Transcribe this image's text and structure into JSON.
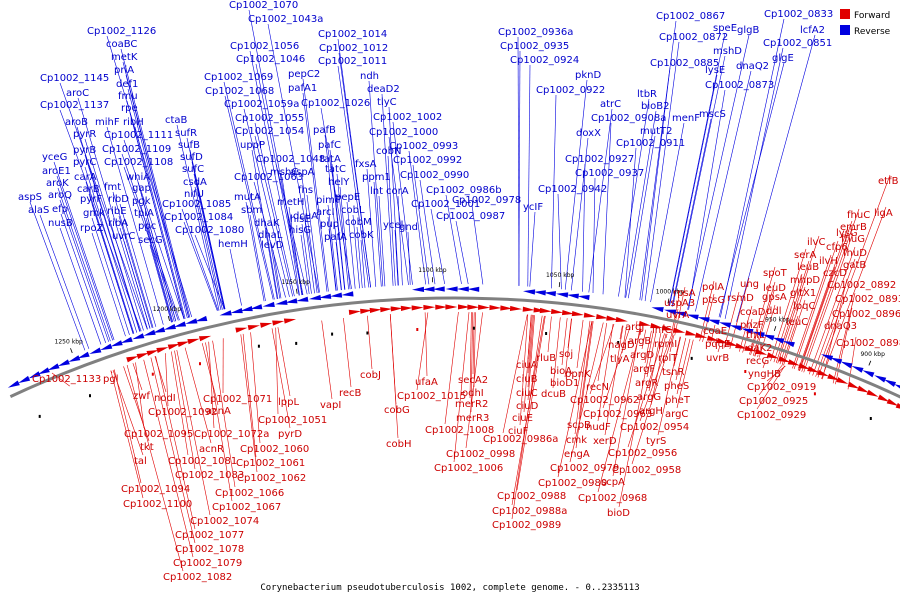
{
  "caption": "Corynebacterium pseudotuberculosis 1002, complete genome. - 0..2335113",
  "legend": {
    "forward": "Forward",
    "reverse": "Reverse"
  },
  "colors": {
    "forward": "#e00000",
    "reverse": "#0000e0",
    "backbone": "#808080"
  },
  "ticks": [
    "1250 kbp",
    "1200 kbp",
    "1150 kbp",
    "1100 kbp",
    "1050 kbp",
    "1000 kbp",
    "950 kbp",
    "900 kbp"
  ],
  "reverse_labels": [
    [
      "Cp1002_1070",
      229,
      8
    ],
    [
      "Cp1002_1043a",
      248,
      22
    ],
    [
      "Cp1002_1126",
      87,
      34
    ],
    [
      "Cp1002_1014",
      318,
      37
    ],
    [
      "coaBC",
      106,
      47
    ],
    [
      "Cp1002_1056",
      230,
      49
    ],
    [
      "Cp1002_1012",
      319,
      51
    ],
    [
      "metK",
      111,
      60
    ],
    [
      "Cp1002_1046",
      236,
      62
    ],
    [
      "Cp1002_1011",
      318,
      64
    ],
    [
      "priA",
      114,
      73
    ],
    [
      "pepC2",
      288,
      77
    ],
    [
      "ndh",
      360,
      79
    ],
    [
      "Cp1002_1145",
      40,
      81
    ],
    [
      "Cp1002_1069",
      204,
      80
    ],
    [
      "def1",
      116,
      87
    ],
    [
      "pafA1",
      288,
      91
    ],
    [
      "Cp1002_1068",
      205,
      94
    ],
    [
      "deaD2",
      367,
      92
    ],
    [
      "aroC",
      66,
      96
    ],
    [
      "fmu",
      118,
      99
    ],
    [
      "Cp1002_1059a",
      224,
      107
    ],
    [
      "Cp1002_1026",
      301,
      106
    ],
    [
      "tlyC",
      377,
      105
    ],
    [
      "Cp1002_1137",
      40,
      108
    ],
    [
      "rpe",
      121,
      111
    ],
    [
      "Cp1002_1055",
      235,
      121
    ],
    [
      "Cp1002_1002",
      373,
      120
    ],
    [
      "aroB",
      65,
      125
    ],
    [
      "mihF",
      95,
      125
    ],
    [
      "ribH",
      123,
      125
    ],
    [
      "ctaB",
      165,
      123
    ],
    [
      "pafB",
      313,
      133
    ],
    [
      "Cp1002_1054",
      235,
      134
    ],
    [
      "Cp1002_1000",
      369,
      135
    ],
    [
      "pyrR",
      73,
      137
    ],
    [
      "Cp1002_1111",
      104,
      138
    ],
    [
      "sufR",
      175,
      136
    ],
    [
      "uppP",
      240,
      148
    ],
    [
      "pafC",
      318,
      148
    ],
    [
      "sufB",
      178,
      148
    ],
    [
      "Cp1002_0993",
      389,
      149
    ],
    [
      "yceG",
      42,
      160
    ],
    [
      "pyrB",
      73,
      153
    ],
    [
      "Cp1002_1109",
      102,
      152
    ],
    [
      "cobN",
      376,
      154
    ],
    [
      "sufD",
      180,
      160
    ],
    [
      "Cp1002_1048",
      256,
      162
    ],
    [
      "tatA",
      320,
      162
    ],
    [
      "pyrC",
      73,
      165
    ],
    [
      "Cp1002_1108",
      104,
      165
    ],
    [
      "Cp1002_0992",
      393,
      163
    ],
    [
      "fxsA",
      355,
      167
    ],
    [
      "aroE1",
      42,
      174
    ],
    [
      "sufC",
      182,
      172
    ],
    [
      "mshC",
      270,
      175
    ],
    [
      "tatC",
      325,
      172
    ],
    [
      "aspA",
      290,
      175
    ],
    [
      "ppm1",
      362,
      180
    ],
    [
      "Cp1002_1063",
      234,
      180
    ],
    [
      "Cp1002_0990",
      400,
      178
    ],
    [
      "carA",
      74,
      180
    ],
    [
      "whiA",
      126,
      180
    ],
    [
      "csdA",
      183,
      185
    ],
    [
      "helY",
      328,
      185
    ],
    [
      "aroK",
      46,
      186
    ],
    [
      "carB",
      77,
      192
    ],
    [
      "fmt",
      104,
      190
    ],
    [
      "gap",
      132,
      191
    ],
    [
      "nifU",
      184,
      197
    ],
    [
      "metH",
      277,
      205
    ],
    [
      "fhs",
      298,
      193
    ],
    [
      "pimT",
      316,
      203
    ],
    [
      "lnt",
      370,
      194
    ],
    [
      "corA",
      386,
      194
    ],
    [
      "Cp1002_0986b",
      426,
      193
    ],
    [
      "aroQ",
      48,
      198
    ],
    [
      "mutA",
      234,
      200
    ],
    [
      "pepE",
      335,
      200
    ],
    [
      "pyrF",
      80,
      202
    ],
    [
      "ribD",
      108,
      202
    ],
    [
      "pgk",
      132,
      204
    ],
    [
      "Cp1002_1085",
      162,
      207
    ],
    [
      "arcI",
      316,
      215
    ],
    [
      "Cp1002_1001",
      411,
      207
    ],
    [
      "Cp1002_0978",
      452,
      203
    ],
    [
      "ycIF",
      523,
      210
    ],
    [
      "aspS",
      18,
      200
    ],
    [
      "efp",
      52,
      212
    ],
    [
      "gmk",
      83,
      216
    ],
    [
      "ribE",
      107,
      214
    ],
    [
      "sbm",
      241,
      213
    ],
    [
      "dcuA",
      293,
      219
    ],
    [
      "cobL",
      341,
      213
    ],
    [
      "alaS",
      28,
      213
    ],
    [
      "tpiA",
      134,
      216
    ],
    [
      "Cp1002_1084",
      164,
      220
    ],
    [
      "hisE",
      290,
      222
    ],
    [
      "cobM",
      345,
      225
    ],
    [
      "ycel",
      383,
      228
    ],
    [
      "Cp1002_0987",
      436,
      219
    ],
    [
      "nusB",
      48,
      226
    ],
    [
      "rpoZ",
      80,
      231
    ],
    [
      "ribA",
      108,
      226
    ],
    [
      "ppc",
      138,
      229
    ],
    [
      "dhaK",
      254,
      226
    ],
    [
      "pup",
      320,
      227
    ],
    [
      "hisG",
      289,
      233
    ],
    [
      "cobK",
      349,
      238
    ],
    [
      "gnd",
      399,
      230
    ],
    [
      "uvrC",
      112,
      239
    ],
    [
      "Cp1002_1080",
      175,
      233
    ],
    [
      "dhaL",
      258,
      238
    ],
    [
      "pafA",
      324,
      240
    ],
    [
      "secG",
      138,
      243
    ],
    [
      "hemH",
      218,
      247
    ],
    [
      "levD",
      261,
      248
    ],
    [
      "Cp1002_0936a",
      498,
      35
    ],
    [
      "Cp1002_0935",
      500,
      49
    ],
    [
      "Cp1002_0924",
      510,
      63
    ],
    [
      "Cp1002_0922",
      536,
      93
    ],
    [
      "pknD",
      575,
      78
    ],
    [
      "atrC",
      600,
      107
    ],
    [
      "ltbR",
      637,
      97
    ],
    [
      "bioB2",
      641,
      109
    ],
    [
      "Cp1002_0908a",
      591,
      121
    ],
    [
      "menF",
      672,
      121
    ],
    [
      "mutT2",
      640,
      134
    ],
    [
      "doxX",
      576,
      136
    ],
    [
      "Cp1002_0911",
      616,
      146
    ],
    [
      "Cp1002_0927",
      565,
      162
    ],
    [
      "Cp1002_0937",
      575,
      176
    ],
    [
      "Cp1002_0942",
      538,
      192
    ],
    [
      "Cp1002_0867",
      656,
      19
    ],
    [
      "speE",
      713,
      31
    ],
    [
      "glgB",
      737,
      33
    ],
    [
      "Cp1002_0833",
      764,
      17
    ],
    [
      "Cp1002_0872",
      659,
      40
    ],
    [
      "Cp1002_0851",
      763,
      46
    ],
    [
      "lcfA2",
      800,
      33
    ],
    [
      "mshD",
      713,
      54
    ],
    [
      "dnaQ2",
      736,
      69
    ],
    [
      "glgE",
      772,
      61
    ],
    [
      "Cp1002_0885",
      650,
      66
    ],
    [
      "lysE",
      705,
      73
    ],
    [
      "Cp1002_0873",
      705,
      88
    ],
    [
      "mscS",
      699,
      117
    ]
  ],
  "forward_labels": [
    [
      "Cp1002_1133",
      32,
      382
    ],
    [
      "pgl",
      103,
      382
    ],
    [
      "zwf",
      133,
      399
    ],
    [
      "nodI",
      154,
      401
    ],
    [
      "Cp1002_1092",
      148,
      415
    ],
    [
      "Cp1002_1071",
      203,
      402
    ],
    [
      "lppL",
      278,
      405
    ],
    [
      "acnA",
      206,
      414
    ],
    [
      "Cp1002_1095",
      124,
      437
    ],
    [
      "Cp1002_1072a",
      194,
      437
    ],
    [
      "Cp1002_1051",
      258,
      423
    ],
    [
      "pyrD",
      278,
      437
    ],
    [
      "vapI",
      320,
      408
    ],
    [
      "recB",
      339,
      396
    ],
    [
      "cobJ",
      360,
      378
    ],
    [
      "ufaA",
      415,
      385
    ],
    [
      "Cp1002_1015",
      397,
      399
    ],
    [
      "cobG",
      384,
      413
    ],
    [
      "secA2",
      458,
      383
    ],
    [
      "odhI",
      462,
      396
    ],
    [
      "merR2",
      455,
      407
    ],
    [
      "merR3",
      456,
      421
    ],
    [
      "Cp1002_1008",
      425,
      433
    ],
    [
      "cobH",
      386,
      447
    ],
    [
      "tkt",
      140,
      450
    ],
    [
      "acnR",
      199,
      452
    ],
    [
      "Cp1002_1060",
      240,
      452
    ],
    [
      "Cp1002_1061",
      236,
      466
    ],
    [
      "tal",
      134,
      464
    ],
    [
      "Cp1002_1081",
      168,
      464
    ],
    [
      "Cp1002_1083",
      175,
      478
    ],
    [
      "Cp1002_1062",
      237,
      481
    ],
    [
      "Cp1002_1094",
      121,
      492
    ],
    [
      "Cp1002_1066",
      215,
      496
    ],
    [
      "Cp1002_1067",
      212,
      510
    ],
    [
      "Cp1002_1100",
      123,
      507
    ],
    [
      "Cp1002_1074",
      190,
      524
    ],
    [
      "Cp1002_1077",
      175,
      538
    ],
    [
      "Cp1002_1078",
      175,
      552
    ],
    [
      "Cp1002_1079",
      173,
      566
    ],
    [
      "Cp1002_1082",
      163,
      580
    ],
    [
      "Cp1002_0998",
      446,
      457
    ],
    [
      "Cp1002_1006",
      434,
      471
    ],
    [
      "Cp1002_0986a",
      483,
      442
    ],
    [
      "Cp1002_0979",
      550,
      471
    ],
    [
      "Cp1002_0980",
      538,
      486
    ],
    [
      "Cp1002_0988",
      497,
      499
    ],
    [
      "Cp1002_0988a",
      492,
      514
    ],
    [
      "Cp1002_0989",
      492,
      528
    ],
    [
      "ciuA",
      516,
      368
    ],
    [
      "ciuB",
      516,
      382
    ],
    [
      "ciuC",
      516,
      396
    ],
    [
      "ciuD",
      516,
      409
    ],
    [
      "ciuE",
      512,
      421
    ],
    [
      "ciuF",
      508,
      434
    ],
    [
      "rluB",
      536,
      361
    ],
    [
      "bioA",
      550,
      374
    ],
    [
      "bioD1",
      550,
      386
    ],
    [
      "dcuB",
      541,
      397
    ],
    [
      "soj",
      559,
      357
    ],
    [
      "ppnK",
      565,
      377
    ],
    [
      "recN",
      586,
      390
    ],
    [
      "Cp1002_0962",
      570,
      403
    ],
    [
      "Cp1002_0963",
      583,
      417
    ],
    [
      "scpB",
      567,
      428
    ],
    [
      "nudF",
      586,
      430
    ],
    [
      "cmk",
      566,
      443
    ],
    [
      "xerD",
      593,
      444
    ],
    [
      "engA",
      564,
      457
    ],
    [
      "nagD",
      608,
      348
    ],
    [
      "tlyA",
      610,
      362
    ],
    [
      "scpA",
      601,
      485
    ],
    [
      "Cp1002_0968",
      578,
      501
    ],
    [
      "bioD",
      607,
      516
    ],
    [
      "argJ",
      625,
      330
    ],
    [
      "argB",
      628,
      344
    ],
    [
      "argD",
      630,
      358
    ],
    [
      "argF",
      633,
      372
    ],
    [
      "argR",
      635,
      386
    ],
    [
      "argG",
      637,
      400
    ],
    [
      "argH",
      639,
      414
    ],
    [
      "infC",
      652,
      333
    ],
    [
      "rpmI",
      654,
      347
    ],
    [
      "rplT",
      658,
      361
    ],
    [
      "tsnR",
      662,
      375
    ],
    [
      "pheS",
      664,
      389
    ],
    [
      "pheT",
      665,
      403
    ],
    [
      "argC",
      665,
      417
    ],
    [
      "Cp1002_0954",
      620,
      430
    ],
    [
      "Cp1002_0956",
      608,
      456
    ],
    [
      "tyrS",
      646,
      444
    ],
    [
      "Cp1002_0958",
      612,
      473
    ],
    [
      "uvrA",
      666,
      318
    ],
    [
      "uspA3",
      664,
      306
    ],
    [
      "rpsA",
      673,
      296
    ],
    [
      "ptsG",
      702,
      303
    ],
    [
      "polA",
      702,
      290
    ],
    [
      "coaE",
      703,
      334
    ],
    [
      "pqqE",
      705,
      347
    ],
    [
      "uvrB",
      706,
      361
    ],
    [
      "rsmD",
      727,
      301
    ],
    [
      "gpsA",
      762,
      300
    ],
    [
      "coaD",
      740,
      315
    ],
    [
      "ddl",
      766,
      314
    ],
    [
      "phzF",
      740,
      328
    ],
    [
      "leuC",
      786,
      325
    ],
    [
      "thiL",
      746,
      338
    ],
    [
      "daK2",
      747,
      351
    ],
    [
      "recG",
      746,
      364
    ],
    [
      "yngHB",
      748,
      377
    ],
    [
      "Cp1002_0919",
      747,
      390
    ],
    [
      "Cp1002_0925",
      739,
      404
    ],
    [
      "Cp1002_0929",
      737,
      418
    ],
    [
      "spoT",
      763,
      276
    ],
    [
      "ung",
      740,
      287
    ],
    [
      "mhpD",
      790,
      283
    ],
    [
      "leuD",
      763,
      291
    ],
    [
      "gltX1",
      790,
      296
    ],
    [
      "lpqC",
      793,
      309
    ],
    [
      "leuB",
      797,
      270
    ],
    [
      "serA",
      794,
      258
    ],
    [
      "ilvH",
      819,
      264
    ],
    [
      "ilvC",
      807,
      245
    ],
    [
      "czcD",
      823,
      276
    ],
    [
      "cfp6",
      826,
      250
    ],
    [
      "Cp1002_0892",
      827,
      288
    ],
    [
      "Cp1002_0893",
      835,
      302
    ],
    [
      "Cp1002_0896",
      832,
      317
    ],
    [
      "dnaQ3",
      824,
      329
    ],
    [
      "Cp1002_0898",
      836,
      346
    ],
    [
      "lysG",
      836,
      236
    ],
    [
      "fhuC",
      847,
      218
    ],
    [
      "emrB",
      840,
      230
    ],
    [
      "fhuG",
      841,
      242
    ],
    [
      "fhuD",
      843,
      256
    ],
    [
      "gatB",
      843,
      268
    ],
    [
      "ligA",
      874,
      216
    ],
    [
      "etfB",
      878,
      184
    ]
  ]
}
